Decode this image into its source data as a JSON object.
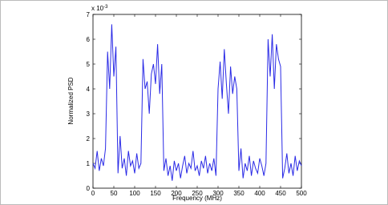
{
  "chart_data": {
    "type": "line",
    "x_label": "Frequency (MHz)",
    "y_label": "Normalized PSD",
    "y_multiplier": "x 10",
    "y_multiplier_exp": "-3",
    "x": [
      0,
      5,
      10,
      15,
      20,
      25,
      30,
      35,
      40,
      45,
      50,
      55,
      60,
      65,
      70,
      75,
      80,
      85,
      90,
      95,
      100,
      105,
      110,
      115,
      120,
      125,
      130,
      135,
      140,
      145,
      150,
      155,
      160,
      165,
      170,
      175,
      180,
      185,
      190,
      195,
      200,
      205,
      210,
      215,
      220,
      225,
      230,
      235,
      240,
      245,
      250,
      255,
      260,
      265,
      270,
      275,
      280,
      285,
      290,
      295,
      300,
      305,
      310,
      315,
      320,
      325,
      330,
      335,
      340,
      345,
      350,
      355,
      360,
      365,
      370,
      375,
      380,
      385,
      390,
      395,
      400,
      405,
      410,
      415,
      420,
      425,
      430,
      435,
      440,
      445,
      450,
      455,
      460,
      465,
      470,
      475,
      480,
      485,
      490,
      495,
      500
    ],
    "values": [
      1.0,
      0.8,
      1.5,
      0.7,
      1.2,
      0.9,
      1.6,
      5.5,
      4.0,
      6.6,
      4.5,
      5.7,
      0.6,
      2.1,
      0.8,
      1.2,
      0.5,
      1.5,
      0.9,
      1.1,
      0.6,
      1.4,
      0.8,
      1.0,
      5.2,
      4.0,
      4.3,
      3.0,
      4.6,
      5.0,
      4.2,
      5.8,
      3.8,
      5.0,
      0.7,
      1.2,
      0.5,
      0.9,
      0.3,
      1.1,
      0.7,
      1.0,
      0.4,
      0.9,
      1.3,
      0.6,
      1.0,
      0.8,
      1.5,
      0.7,
      0.9,
      0.5,
      1.1,
      0.8,
      1.3,
      0.6,
      1.0,
      0.7,
      1.2,
      0.5,
      4.0,
      5.1,
      3.6,
      5.6,
      4.2,
      3.0,
      4.9,
      3.8,
      4.5,
      4.0,
      0.7,
      1.6,
      0.4,
      1.0,
      0.7,
      1.3,
      0.5,
      1.1,
      0.8,
      0.6,
      1.2,
      0.9,
      0.5,
      1.0,
      6.0,
      4.5,
      6.2,
      4.0,
      5.8,
      5.2,
      4.9,
      0.4,
      0.8,
      1.4,
      0.6,
      1.0,
      0.5,
      1.3,
      0.7,
      1.1,
      0.9
    ],
    "color": "#2a2ae6",
    "xlim": [
      0,
      500
    ],
    "xticks": [
      0,
      50,
      100,
      150,
      200,
      250,
      300,
      350,
      400,
      450,
      500
    ],
    "ylim": [
      0,
      7
    ],
    "yticks": [
      0,
      1,
      2,
      3,
      4,
      5,
      6,
      7
    ]
  }
}
